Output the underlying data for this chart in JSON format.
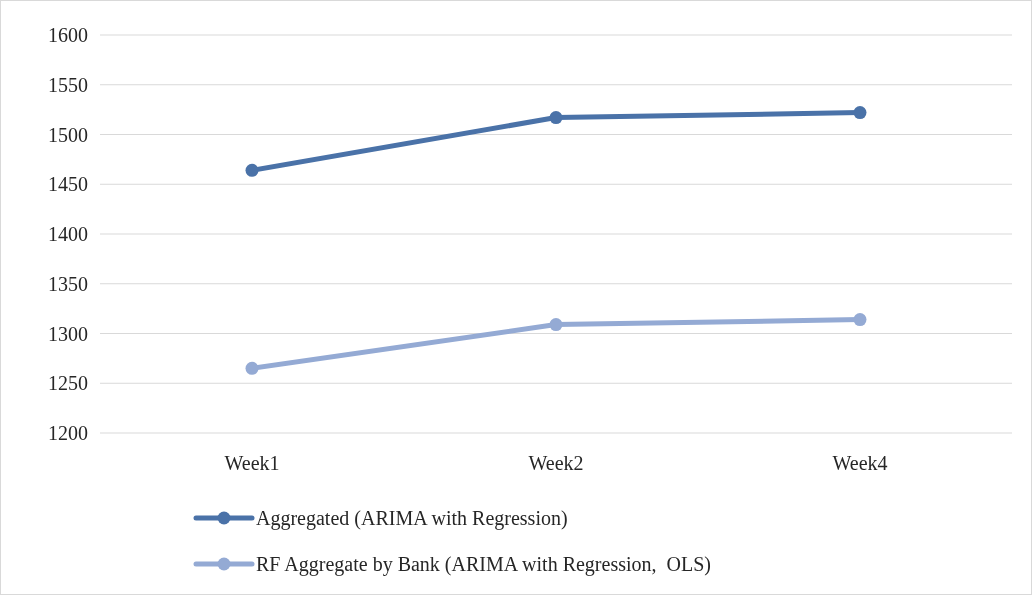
{
  "chart_data": {
    "type": "line",
    "categories": [
      "Week1",
      "Week2",
      "Week4"
    ],
    "series": [
      {
        "name": "Aggregated (ARIMA with Regression)",
        "color": "#4a72a8",
        "values": [
          1464,
          1517,
          1522
        ]
      },
      {
        "name": "RF Aggregate by Bank (ARIMA with Regression,  OLS)",
        "color": "#94aad4",
        "values": [
          1265,
          1309,
          1314
        ]
      }
    ],
    "ylim": [
      1200,
      1600
    ],
    "yticks": [
      1200,
      1250,
      1300,
      1350,
      1400,
      1450,
      1500,
      1550,
      1600
    ],
    "grid": "y",
    "legend": "bottom",
    "marker": "circle",
    "line_style": "solid"
  }
}
